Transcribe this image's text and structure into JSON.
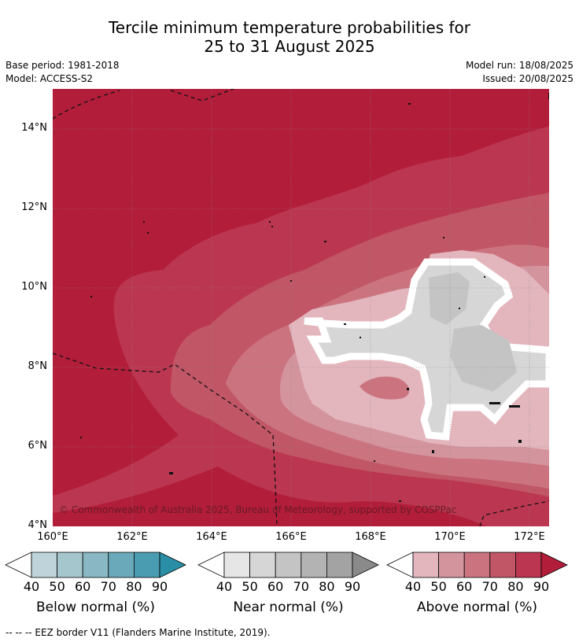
{
  "title_line1": "Tercile minimum temperature probabilities for",
  "title_line2": "25 to 31 August 2025",
  "base_period": "Base period: 1981-2018",
  "model": "Model: ACCESS-S2",
  "model_run": "Model run: 18/08/2025",
  "issued": "Issued: 20/08/2025",
  "copyright": "© Commonwealth of Australia 2025, Bureau of Meteorology, supported by COSPPac",
  "footnote": "--  --  -- EEZ border V11 (Flanders Marine Institute, 2019).",
  "axes": {
    "x_ticks": [
      "160°E",
      "162°E",
      "164°E",
      "166°E",
      "168°E",
      "170°E",
      "172°E"
    ],
    "y_ticks": [
      "14°N",
      "12°N",
      "10°N",
      "8°N",
      "6°N",
      "4°N"
    ],
    "lon_range": [
      160,
      172.5
    ],
    "lat_range": [
      4,
      15
    ]
  },
  "legends": [
    {
      "title": "Below normal (%)",
      "ticks": [
        "40",
        "50",
        "60",
        "70",
        "80",
        "90"
      ],
      "colors": [
        "#ffffff",
        "#bfd4da",
        "#a6c6cd",
        "#89b7c3",
        "#6aa9b9",
        "#4a9cb0",
        "#2a8ea6"
      ]
    },
    {
      "title": "Near normal (%)",
      "ticks": [
        "40",
        "50",
        "60",
        "70",
        "80",
        "90"
      ],
      "colors": [
        "#ffffff",
        "#e6e6e6",
        "#d6d6d6",
        "#c4c4c4",
        "#b3b3b3",
        "#a3a3a3",
        "#8a8a8a"
      ]
    },
    {
      "title": "Above normal (%)",
      "ticks": [
        "40",
        "50",
        "60",
        "70",
        "80",
        "90"
      ],
      "colors": [
        "#ffffff",
        "#e3b6bd",
        "#d4949e",
        "#cb7480",
        "#c15666",
        "#bb3650",
        "#b21d3a"
      ]
    }
  ]
}
